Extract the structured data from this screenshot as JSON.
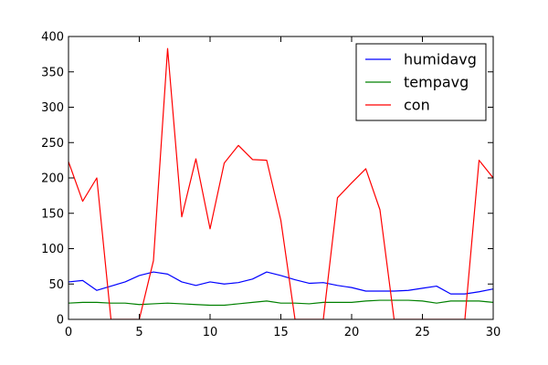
{
  "chart_data": {
    "type": "line",
    "title": "",
    "xlabel": "",
    "ylabel": "",
    "xlim": [
      0,
      30
    ],
    "ylim": [
      0,
      400
    ],
    "xticks": [
      0,
      5,
      10,
      15,
      20,
      25,
      30
    ],
    "yticks": [
      0,
      50,
      100,
      150,
      200,
      250,
      300,
      350,
      400
    ],
    "grid": false,
    "legend_position": "top-right",
    "x": [
      0,
      1,
      2,
      3,
      4,
      5,
      6,
      7,
      8,
      9,
      10,
      11,
      12,
      13,
      14,
      15,
      16,
      17,
      18,
      19,
      20,
      21,
      22,
      23,
      24,
      25,
      26,
      27,
      28,
      29,
      30
    ],
    "series": [
      {
        "name": "humidavg",
        "color": "#0000ff",
        "values": [
          53,
          55,
          41,
          47,
          53,
          62,
          67,
          64,
          53,
          48,
          53,
          50,
          52,
          57,
          67,
          62,
          56,
          51,
          52,
          48,
          45,
          40,
          40,
          40,
          41,
          44,
          47,
          36,
          36,
          39,
          43
        ]
      },
      {
        "name": "tempavg",
        "color": "#008000",
        "values": [
          23,
          24,
          24,
          23,
          23,
          21,
          22,
          23,
          22,
          21,
          20,
          20,
          22,
          24,
          26,
          23,
          23,
          22,
          24,
          24,
          24,
          26,
          27,
          27,
          27,
          26,
          23,
          26,
          26,
          26,
          24
        ]
      },
      {
        "name": "con",
        "color": "#ff0000",
        "values": [
          223,
          167,
          200,
          0,
          0,
          0,
          83,
          383,
          145,
          227,
          128,
          221,
          246,
          226,
          225,
          140,
          0,
          0,
          0,
          172,
          193,
          213,
          155,
          0,
          0,
          0,
          0,
          0,
          0,
          225,
          200
        ]
      }
    ]
  }
}
